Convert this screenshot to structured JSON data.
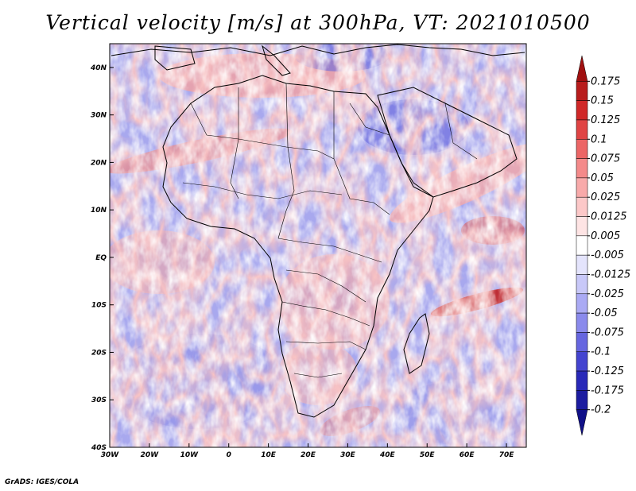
{
  "title": "Vertical velocity [m/s] at 300hPa, VT: 2021010500",
  "footer": "GrADS: IGES/COLA",
  "map": {
    "lon_range": [
      -30,
      75
    ],
    "lat_range": [
      -40,
      45
    ],
    "lon_ticks": [
      {
        "value": -30,
        "label": "30W"
      },
      {
        "value": -20,
        "label": "20W"
      },
      {
        "value": -10,
        "label": "10W"
      },
      {
        "value": 0,
        "label": "0"
      },
      {
        "value": 10,
        "label": "10E"
      },
      {
        "value": 20,
        "label": "20E"
      },
      {
        "value": 30,
        "label": "30E"
      },
      {
        "value": 40,
        "label": "40E"
      },
      {
        "value": 50,
        "label": "50E"
      },
      {
        "value": 60,
        "label": "60E"
      },
      {
        "value": 70,
        "label": "70E"
      }
    ],
    "lat_ticks": [
      {
        "value": 40,
        "label": "40N"
      },
      {
        "value": 30,
        "label": "30N"
      },
      {
        "value": 20,
        "label": "20N"
      },
      {
        "value": 10,
        "label": "10N"
      },
      {
        "value": 0,
        "label": "EQ"
      },
      {
        "value": -10,
        "label": "10S"
      },
      {
        "value": -20,
        "label": "20S"
      },
      {
        "value": -30,
        "label": "30S"
      },
      {
        "value": -40,
        "label": "40S"
      }
    ]
  },
  "colorbar": {
    "labels": [
      "0.175",
      "0.15",
      "0.125",
      "0.1",
      "0.075",
      "0.05",
      "0.025",
      "0.0125",
      "0.005",
      "-0.005",
      "-0.0125",
      "-0.025",
      "-0.05",
      "-0.075",
      "-0.1",
      "-0.125",
      "-0.175",
      "-0.2"
    ],
    "colors": [
      "#a01010",
      "#b81c1c",
      "#d02828",
      "#e04444",
      "#ec6666",
      "#f48a8a",
      "#f8aaaa",
      "#fcc8c8",
      "#fee4e4",
      "#ffffff",
      "#e4e4fc",
      "#c8c8f8",
      "#aaaaf4",
      "#8a8aec",
      "#6666e0",
      "#4444d0",
      "#2828b8",
      "#1c1ca0",
      "#101088"
    ]
  }
}
